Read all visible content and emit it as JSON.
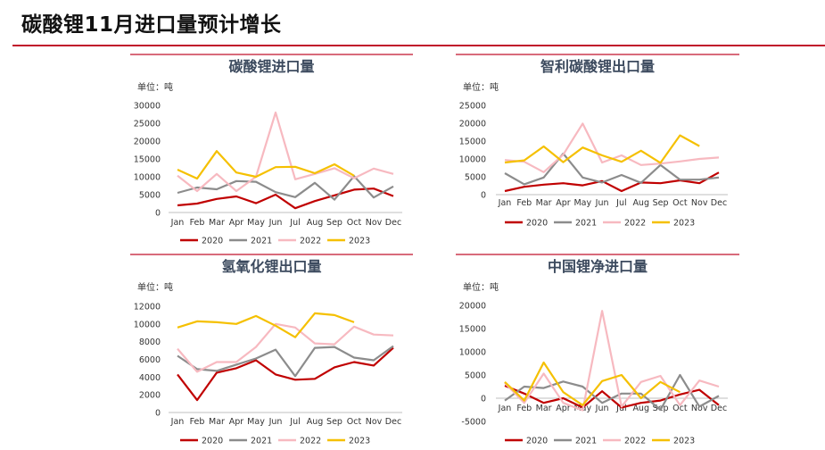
{
  "page": {
    "title": "碳酸锂11月进口量预计增长"
  },
  "colors": {
    "2020": "#c00000",
    "2021": "#8c8c8c",
    "2022": "#f7b9c0",
    "2023": "#f5c000",
    "rule": "#c0102a"
  },
  "chart_data": [
    {
      "type": "line",
      "title": "碳酸锂进口量",
      "unit": "单位：吨",
      "categories": [
        "Jan",
        "Feb",
        "Mar",
        "Apr",
        "May",
        "Jun",
        "Jul",
        "Aug",
        "Sep",
        "Oct",
        "Nov",
        "Dec"
      ],
      "ylim": [
        0,
        30000
      ],
      "yticks": [
        0,
        5000,
        10000,
        15000,
        20000,
        25000,
        30000
      ],
      "legend": "bottom",
      "series": [
        {
          "name": "2020",
          "values": [
            2000,
            2500,
            3800,
            4500,
            2600,
            5000,
            1200,
            3200,
            4800,
            6400,
            6700,
            4600
          ]
        },
        {
          "name": "2021",
          "values": [
            5500,
            7000,
            6500,
            8800,
            8600,
            5700,
            4300,
            8300,
            3600,
            10200,
            4200,
            7300
          ]
        },
        {
          "name": "2022",
          "values": [
            10300,
            6000,
            10800,
            6000,
            10000,
            28000,
            9300,
            10800,
            12400,
            9600,
            12300,
            10800
          ]
        },
        {
          "name": "2023",
          "values": [
            12000,
            9500,
            17200,
            11200,
            10000,
            12700,
            12800,
            11000,
            13500,
            10300,
            null,
            null
          ]
        }
      ]
    },
    {
      "type": "line",
      "title": "智利碳酸锂出口量",
      "unit": "单位：吨",
      "categories": [
        "Jan",
        "Feb",
        "Mar",
        "Apr",
        "May",
        "Jun",
        "Jul",
        "Aug",
        "Sep",
        "Oct",
        "Nov",
        "Dec"
      ],
      "ylim": [
        0,
        25000
      ],
      "yticks": [
        0,
        5000,
        10000,
        15000,
        20000,
        25000
      ],
      "legend": "bottom",
      "series": [
        {
          "name": "2020",
          "values": [
            1000,
            2200,
            2800,
            3200,
            2600,
            3800,
            1000,
            3400,
            3200,
            4000,
            3200,
            6200
          ]
        },
        {
          "name": "2021",
          "values": [
            6000,
            2900,
            4800,
            11500,
            4800,
            3400,
            5500,
            3300,
            8300,
            4200,
            4200,
            4800
          ]
        },
        {
          "name": "2022",
          "values": [
            9700,
            9200,
            6300,
            11200,
            19900,
            9000,
            11000,
            8300,
            8700,
            9300,
            10000,
            10400
          ]
        },
        {
          "name": "2023",
          "values": [
            9000,
            9600,
            13500,
            9100,
            13200,
            11000,
            9200,
            12300,
            8900,
            16600,
            13600,
            null
          ]
        }
      ]
    },
    {
      "type": "line",
      "title": "氢氧化锂出口量",
      "unit": "单位：吨",
      "categories": [
        "Jan",
        "Feb",
        "Mar",
        "Apr",
        "May",
        "Jun",
        "Jul",
        "Aug",
        "Sep",
        "Oct",
        "Nov",
        "Dec"
      ],
      "ylim": [
        0,
        12000
      ],
      "yticks": [
        0,
        2000,
        4000,
        6000,
        8000,
        10000,
        12000
      ],
      "legend": "bottom",
      "series": [
        {
          "name": "2020",
          "values": [
            4300,
            1400,
            4500,
            5000,
            5900,
            4300,
            3700,
            3800,
            5100,
            5700,
            5300,
            7300
          ]
        },
        {
          "name": "2021",
          "values": [
            6400,
            4900,
            4700,
            5400,
            6100,
            7100,
            4100,
            7300,
            7400,
            6200,
            5900,
            7500
          ]
        },
        {
          "name": "2022",
          "values": [
            7200,
            4600,
            5700,
            5700,
            7400,
            10000,
            9600,
            7800,
            7700,
            9700,
            8800,
            8700
          ]
        },
        {
          "name": "2023",
          "values": [
            9600,
            10300,
            10200,
            10000,
            10900,
            9800,
            8500,
            11200,
            11000,
            10200,
            null,
            null
          ]
        }
      ]
    },
    {
      "type": "line",
      "title": "中国锂净进口量",
      "unit": "单位：吨",
      "categories": [
        "Jan",
        "Feb",
        "Mar",
        "Apr",
        "May",
        "Jun",
        "Jul",
        "Aug",
        "Sep",
        "Oct",
        "Nov",
        "Dec"
      ],
      "ylim": [
        -5000,
        20000
      ],
      "yticks": [
        -5000,
        0,
        5000,
        10000,
        15000,
        20000
      ],
      "legend": "bottom",
      "series": [
        {
          "name": "2020",
          "values": [
            2700,
            1000,
            -1000,
            0,
            -2000,
            1500,
            -2000,
            -1000,
            -500,
            800,
            1800,
            -1500
          ]
        },
        {
          "name": "2021",
          "values": [
            -500,
            2500,
            2200,
            3600,
            2500,
            -1000,
            1000,
            1000,
            -2500,
            5000,
            -1800,
            500
          ]
        },
        {
          "name": "2022",
          "values": [
            3300,
            -1000,
            5300,
            -1000,
            -2600,
            18800,
            -1800,
            3500,
            4800,
            -1500,
            3800,
            2500
          ]
        },
        {
          "name": "2023",
          "values": [
            3500,
            -500,
            7700,
            1300,
            -1500,
            3700,
            5000,
            0,
            3500,
            1300,
            null,
            null
          ]
        }
      ]
    }
  ]
}
